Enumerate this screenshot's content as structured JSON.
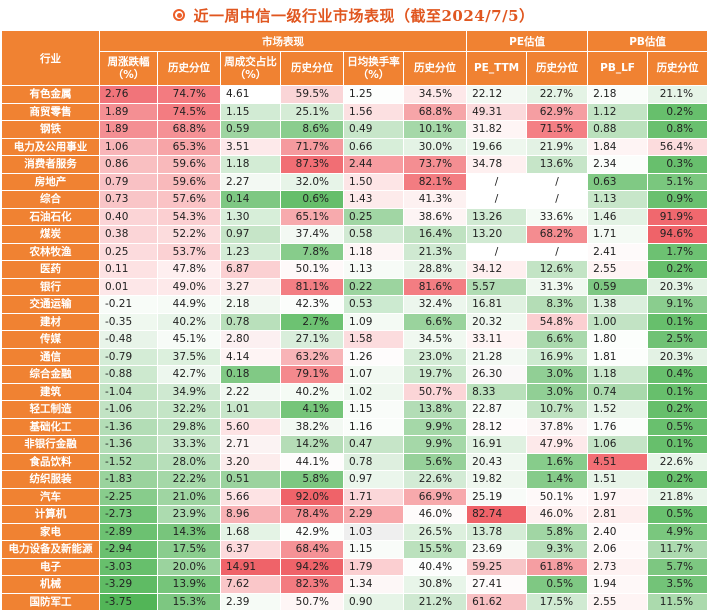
{
  "title": "近一周中信一级行业市场表现（截至2024/7/5）",
  "headers": {
    "industry": "行业",
    "groups": [
      "市场表现",
      "PE估值",
      "PB估值"
    ],
    "columns": [
      "周涨跌幅（%）",
      "历史分位",
      "周成交占比（%）",
      "历史分位",
      "日均换手率（%）",
      "历史分位",
      "PE_TTM",
      "历史分位",
      "PB_LF",
      "历史分位"
    ]
  },
  "rows": [
    {
      "name": "有色金属",
      "values": [
        "2.76",
        "74.7%",
        "4.61",
        "59.5%",
        "1.25",
        "34.5%",
        "22.12",
        "22.7%",
        "2.18",
        "21.1%"
      ],
      "colors": [
        "#f1747a",
        "#f37b80",
        "#ffffff",
        "#fad5d7",
        "#fdfefd",
        "#fde8e9",
        "#f3f9f3",
        "#e4f3e5",
        "#fafdfa",
        "#e6f4e7"
      ]
    },
    {
      "name": "商贸零售",
      "values": [
        "1.89",
        "74.5%",
        "1.15",
        "25.1%",
        "1.56",
        "68.8%",
        "49.31",
        "62.9%",
        "1.12",
        "0.2%"
      ],
      "colors": [
        "#f48f93",
        "#f37c81",
        "#d2ebd4",
        "#d5ecd6",
        "#fce0e1",
        "#f6a5a8",
        "#fbdadc",
        "#f59ea2",
        "#c3e4c5",
        "#67bf6c"
      ]
    },
    {
      "name": "钢铁",
      "values": [
        "1.89",
        "68.8%",
        "0.59",
        "8.6%",
        "0.49",
        "10.1%",
        "31.82",
        "71.5%",
        "0.88",
        "0.8%"
      ],
      "colors": [
        "#f48f93",
        "#f59195",
        "#9ed5a1",
        "#8acd8e",
        "#c7e6c9",
        "#a5d8a8",
        "#fef5f5",
        "#f47f84",
        "#bbe1bd",
        "#6ac06f"
      ]
    },
    {
      "name": "电力及公用事业",
      "values": [
        "1.06",
        "65.3%",
        "3.51",
        "71.7%",
        "0.66",
        "30.0%",
        "19.66",
        "21.9%",
        "1.84",
        "56.4%"
      ],
      "colors": [
        "#f8b5b8",
        "#f7a4a7",
        "#fde9ea",
        "#f59a9e",
        "#d7eed9",
        "#e4f3e5",
        "#eef7ee",
        "#e3f2e4",
        "#fef4f4",
        "#fcdcdd"
      ]
    },
    {
      "name": "消费者服务",
      "values": [
        "0.86",
        "59.6%",
        "1.18",
        "87.3%",
        "2.44",
        "73.7%",
        "34.78",
        "13.6%",
        "2.34",
        "0.3%"
      ],
      "colors": [
        "#f9bfc1",
        "#f9b9bb",
        "#d3ecd5",
        "#f16e74",
        "#f79ca0",
        "#f48e92",
        "#fef0f0",
        "#c6e5c8",
        "#fbfdfb",
        "#68bf6d"
      ]
    },
    {
      "name": "房地产",
      "values": [
        "0.79",
        "59.6%",
        "2.27",
        "32.0%",
        "1.50",
        "82.1%",
        "/",
        "/",
        "0.63",
        "5.1%"
      ],
      "colors": [
        "#f9c1c4",
        "#f9b9bb",
        "#f3f9f3",
        "#e7f4e8",
        "#fde5e6",
        "#f37c81",
        "#ffffff",
        "#ffffff",
        "#80c984",
        "#7ac77e"
      ]
    },
    {
      "name": "综合",
      "values": [
        "0.73",
        "57.6%",
        "0.14",
        "0.6%",
        "1.43",
        "41.3%",
        "/",
        "/",
        "1.13",
        "0.9%"
      ],
      "colors": [
        "#f9c5c7",
        "#fac3c5",
        "#7ec883",
        "#66be6b",
        "#fdebeb",
        "#fdf1f1",
        "#ffffff",
        "#ffffff",
        "#c7e6c9",
        "#6ac06f"
      ]
    },
    {
      "name": "石油石化",
      "values": [
        "0.40",
        "54.3%",
        "1.30",
        "65.1%",
        "0.25",
        "38.6%",
        "13.26",
        "33.6%",
        "1.46",
        "91.9%"
      ],
      "colors": [
        "#fbd4d6",
        "#fbcfd1",
        "#d7eed9",
        "#f7aaad",
        "#a1d6a4",
        "#fdf4f4",
        "#d1ead3",
        "#f5fbf5",
        "#e2f2e3",
        "#f0686e"
      ]
    },
    {
      "name": "煤炭",
      "values": [
        "0.38",
        "52.2%",
        "0.97",
        "37.4%",
        "0.58",
        "16.4%",
        "13.20",
        "68.2%",
        "1.71",
        "94.6%"
      ],
      "colors": [
        "#fbd5d7",
        "#fcdcdd",
        "#c6e5c8",
        "#f3f9f3",
        "#d1ead3",
        "#bfe2c1",
        "#d1ead3",
        "#f48c90",
        "#f4faf4",
        "#ef6369"
      ]
    },
    {
      "name": "农林牧渔",
      "values": [
        "0.25",
        "53.7%",
        "1.23",
        "7.8%",
        "1.18",
        "21.3%",
        "/",
        "/",
        "2.41",
        "1.7%"
      ],
      "colors": [
        "#fcdbdd",
        "#fbd1d3",
        "#d4ecd6",
        "#87cc8b",
        "#fdf5f5",
        "#cfe9d1",
        "#ffffff",
        "#ffffff",
        "#fefafa",
        "#6dc172"
      ]
    },
    {
      "name": "医药",
      "values": [
        "0.11",
        "47.8%",
        "6.87",
        "50.1%",
        "1.13",
        "28.8%",
        "34.12",
        "12.6%",
        "2.55",
        "0.2%"
      ],
      "colors": [
        "#fde2e3",
        "#feeff0",
        "#fbd0d2",
        "#fef9f9",
        "#f7fbf7",
        "#e6f4e7",
        "#feefef",
        "#c3e4c5",
        "#fef4f4",
        "#67bf6c"
      ]
    },
    {
      "name": "银行",
      "values": [
        "0.01",
        "49.0%",
        "3.27",
        "81.1%",
        "0.22",
        "81.6%",
        "5.57",
        "31.3%",
        "0.59",
        "20.3%"
      ],
      "colors": [
        "#fde7e8",
        "#fde9ea",
        "#fcebeb",
        "#f37e83",
        "#9cd49f",
        "#f37d82",
        "#b0dcb3",
        "#f0f8f0",
        "#7ec883",
        "#e3f2e4"
      ]
    },
    {
      "name": "交通运输",
      "values": [
        "-0.21",
        "44.9%",
        "2.18",
        "42.3%",
        "0.53",
        "32.4%",
        "16.81",
        "8.3%",
        "1.38",
        "9.1%"
      ],
      "colors": [
        "#f8fcf8",
        "#f6fbf6",
        "#f1f8f1",
        "#fbfdfb",
        "#ccead0",
        "#ecf6ed",
        "#e0f1e1",
        "#b4ddb6",
        "#dbefdd",
        "#8acd8e"
      ]
    },
    {
      "name": "建材",
      "values": [
        "-0.35",
        "40.2%",
        "0.78",
        "2.7%",
        "1.09",
        "6.6%",
        "20.32",
        "54.8%",
        "1.00",
        "0.1%"
      ],
      "colors": [
        "#eff8ef",
        "#e7f4e8",
        "#b9e0bb",
        "#6dc272",
        "#f4faf4",
        "#9ad39d",
        "#f0f8f0",
        "#fbcfd1",
        "#c2e3c4",
        "#67bf6c"
      ]
    },
    {
      "name": "传媒",
      "values": [
        "-0.48",
        "45.1%",
        "2.80",
        "27.1%",
        "1.58",
        "34.5%",
        "33.11",
        "6.6%",
        "1.80",
        "2.5%"
      ],
      "colors": [
        "#e8f4e9",
        "#f7fbf7",
        "#fcf0f1",
        "#d9eedb",
        "#fcdcde",
        "#f0f8f0",
        "#fef4f4",
        "#a9d9ac",
        "#fcfefc",
        "#70c275"
      ]
    },
    {
      "name": "通信",
      "values": [
        "-0.79",
        "37.5%",
        "4.14",
        "63.2%",
        "1.26",
        "23.0%",
        "21.28",
        "16.9%",
        "1.81",
        "20.3%"
      ],
      "colors": [
        "#d4ecd6",
        "#dcf0dd",
        "#fef4f4",
        "#f8b4b7",
        "#fefcfc",
        "#d4ecd6",
        "#f3f9f3",
        "#ceead0",
        "#fcfefc",
        "#e3f2e4"
      ]
    },
    {
      "name": "综合金融",
      "values": [
        "-0.88",
        "42.7%",
        "0.18",
        "79.1%",
        "1.07",
        "19.7%",
        "26.30",
        "3.0%",
        "1.18",
        "0.4%"
      ],
      "colors": [
        "#cde9cf",
        "#edf7ee",
        "#81c985",
        "#f4898d",
        "#f2f9f2",
        "#cbe8cd",
        "#faf8f8",
        "#91cf95",
        "#cbe8cd",
        "#68bf6d"
      ]
    },
    {
      "name": "建筑",
      "values": [
        "-1.04",
        "34.9%",
        "2.22",
        "40.2%",
        "1.02",
        "50.7%",
        "8.33",
        "3.0%",
        "0.74",
        "0.1%"
      ],
      "colors": [
        "#c3e4c5",
        "#cfe9d1",
        "#f3f9f3",
        "#f5fbf5",
        "#eef7ee",
        "#fbd5d7",
        "#b9e0bb",
        "#91cf95",
        "#a9d9ac",
        "#67bf6c"
      ]
    },
    {
      "name": "轻工制造",
      "values": [
        "-1.06",
        "32.2%",
        "1.01",
        "4.1%",
        "1.15",
        "13.8%",
        "22.87",
        "10.7%",
        "1.52",
        "0.2%"
      ],
      "colors": [
        "#c2e3c4",
        "#c4e5c6",
        "#c8e6ca",
        "#76c57a",
        "#f9fcf9",
        "#b3ddb6",
        "#f7fbf7",
        "#bfe2c1",
        "#e7f4e8",
        "#67bf6c"
      ]
    },
    {
      "name": "基础化工",
      "values": [
        "-1.36",
        "29.8%",
        "5.60",
        "38.2%",
        "1.16",
        "9.9%",
        "28.12",
        "37.8%",
        "1.76",
        "0.5%"
      ],
      "colors": [
        "#b3ddb6",
        "#bfe3c2",
        "#fde3e4",
        "#f3f9f3",
        "#fafdfa",
        "#a5d8a8",
        "#fefbfb",
        "#fcf5f5",
        "#fbfdfb",
        "#69c06e"
      ]
    },
    {
      "name": "非银行金融",
      "values": [
        "-1.36",
        "33.3%",
        "2.71",
        "14.2%",
        "0.47",
        "9.9%",
        "16.91",
        "47.9%",
        "1.06",
        "0.1%"
      ],
      "colors": [
        "#b3ddb6",
        "#c6e5c8",
        "#fbf3f3",
        "#b5ddb7",
        "#c6e5c8",
        "#a5d8a8",
        "#e0f1e1",
        "#fde9ea",
        "#c5e4c7",
        "#67bf6c"
      ]
    },
    {
      "name": "食品饮料",
      "values": [
        "-1.52",
        "28.0%",
        "3.20",
        "44.1%",
        "0.78",
        "5.6%",
        "20.43",
        "1.6%",
        "4.51",
        "22.6%"
      ],
      "colors": [
        "#a9d9ac",
        "#b7dfba",
        "#fcecec",
        "#fefcfc",
        "#deefdf",
        "#97d19a",
        "#f0f8f0",
        "#87cc8b",
        "#f26e74",
        "#e8f5e9"
      ]
    },
    {
      "name": "纺织服装",
      "values": [
        "-1.83",
        "22.2%",
        "0.51",
        "5.8%",
        "0.97",
        "22.6%",
        "19.82",
        "1.4%",
        "1.51",
        "0.2%"
      ],
      "colors": [
        "#9ad39d",
        "#a5d8a8",
        "#9bd39e",
        "#7dc781",
        "#ebf6ec",
        "#d3ebd5",
        "#eef7ee",
        "#86cb8a",
        "#e7f4e8",
        "#67bf6c"
      ]
    },
    {
      "name": "汽车",
      "values": [
        "-2.25",
        "21.0%",
        "5.66",
        "92.0%",
        "1.71",
        "66.9%",
        "25.19",
        "50.1%",
        "1.97",
        "21.8%"
      ],
      "colors": [
        "#88cc8c",
        "#9fd5a2",
        "#fde3e4",
        "#ef6369",
        "#fbd7d9",
        "#f7a9ac",
        "#f8fbf8",
        "#fef9f9",
        "#fef5f5",
        "#e7f4e8"
      ]
    },
    {
      "name": "计算机",
      "values": [
        "-2.73",
        "23.9%",
        "8.96",
        "78.4%",
        "2.29",
        "46.0%",
        "82.74",
        "46.0%",
        "2.81",
        "0.5%"
      ],
      "colors": [
        "#72c477",
        "#acdbaf",
        "#f8b2b5",
        "#f48c90",
        "#f8a8ab",
        "#fefbfb",
        "#ef6369",
        "#fef0f0",
        "#feeeee",
        "#69c06e"
      ]
    },
    {
      "name": "家电",
      "values": [
        "-2.89",
        "14.3%",
        "1.68",
        "42.9%",
        "1.03",
        "26.5%",
        "13.78",
        "5.8%",
        "2.40",
        "4.9%"
      ],
      "colors": [
        "#6cc171",
        "#78c57c",
        "#e4f3e5",
        "#fcfefc",
        "#efefef",
        "#ddf0de",
        "#d5ecd7",
        "#a1d6a4",
        "#fefafa",
        "#7ac77e"
      ]
    },
    {
      "name": "电力设备及新能源",
      "values": [
        "-2.94",
        "17.5%",
        "6.37",
        "68.4%",
        "1.15",
        "15.5%",
        "23.69",
        "9.3%",
        "2.06",
        "11.7%"
      ],
      "colors": [
        "#6ac06f",
        "#8acd8e",
        "#fcdadc",
        "#f59296",
        "#f9fcf9",
        "#bbe1bd",
        "#f7fbf7",
        "#b8dfba",
        "#fef9f9",
        "#acdaaf"
      ]
    },
    {
      "name": "电子",
      "values": [
        "-3.03",
        "20.0%",
        "14.91",
        "94.2%",
        "1.79",
        "40.4%",
        "59.25",
        "61.8%",
        "2.73",
        "5.7%"
      ],
      "colors": [
        "#67bf6c",
        "#9bd39e",
        "#ef6369",
        "#ef6369",
        "#fbcfd1",
        "#fcfdfc",
        "#f8c6c8",
        "#f59ea2",
        "#fef2f2",
        "#7dc781"
      ]
    },
    {
      "name": "机械",
      "values": [
        "-3.29",
        "13.9%",
        "7.62",
        "82.3%",
        "1.34",
        "30.8%",
        "27.41",
        "0.5%",
        "1.94",
        "3.5%"
      ],
      "colors": [
        "#5fbb64",
        "#76c57a",
        "#fac7c9",
        "#f37b80",
        "#fdf7f7",
        "#e8f5e9",
        "#fefbfb",
        "#7fc883",
        "#fef8f8",
        "#73c378"
      ]
    },
    {
      "name": "国防军工",
      "values": [
        "-3.75",
        "15.3%",
        "2.39",
        "50.7%",
        "0.90",
        "21.2%",
        "61.62",
        "17.5%",
        "2.55",
        "11.5%"
      ],
      "colors": [
        "#52b557",
        "#7dc781",
        "#f6fbf6",
        "#fef6f6",
        "#e6f4e7",
        "#cfe9d1",
        "#f8c0c3",
        "#d0ead2",
        "#fef4f4",
        "#abdaad"
      ]
    }
  ]
}
